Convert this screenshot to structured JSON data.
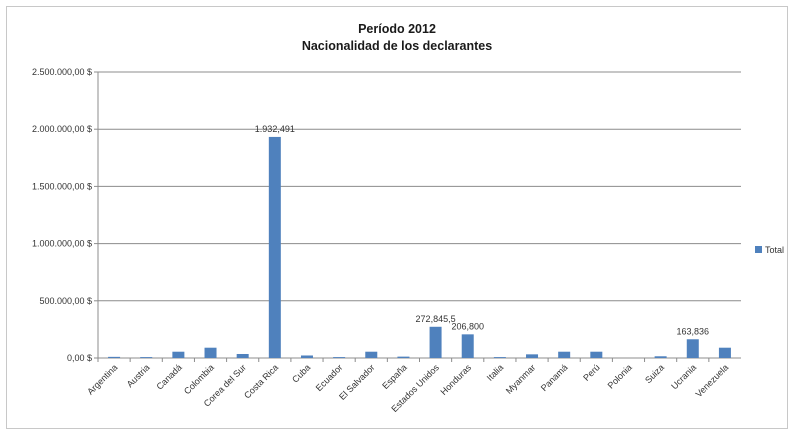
{
  "chart_data": {
    "type": "bar",
    "title": "Período 2012",
    "subtitle": "Nacionalidad de los declarantes",
    "xlabel": "",
    "ylabel": "",
    "ylim": [
      0,
      2500000
    ],
    "yticks": [
      0,
      500000,
      1000000,
      1500000,
      2000000,
      2500000
    ],
    "ytick_labels": [
      "0,00 $",
      "500.000,00 $",
      "1.000.000,00 $",
      "1.500.000,00 $",
      "2.000.000,00 $",
      "2.500.000,00 $"
    ],
    "grid": true,
    "legend_position": "right",
    "bar_color": "#4f81bd",
    "categories": [
      "Argentina",
      "Austria",
      "Canadá",
      "Colombia",
      "Corea del Sur",
      "Costa Rica",
      "Cuba",
      "Ecuador",
      "El Salvador",
      "España",
      "Estados Unidos",
      "Honduras",
      "Italia",
      "Myanmar",
      "Panamá",
      "Perú",
      "Polonia",
      "Suiza",
      "Ucrania",
      "Venezuela"
    ],
    "series": [
      {
        "name": "Total",
        "values": [
          10000,
          8000,
          55000,
          90000,
          35000,
          1932491,
          22000,
          8000,
          55000,
          12000,
          272845.5,
          206800,
          8000,
          32000,
          55000,
          55000,
          0,
          15000,
          163836,
          90000
        ]
      }
    ],
    "data_labels": [
      {
        "category": "Costa Rica",
        "text": "1.932,491"
      },
      {
        "category": "Estados Unidos",
        "text": "272,845,5"
      },
      {
        "category": "Honduras",
        "text": "206,800"
      },
      {
        "category": "Ucrania",
        "text": "163,836"
      }
    ]
  }
}
